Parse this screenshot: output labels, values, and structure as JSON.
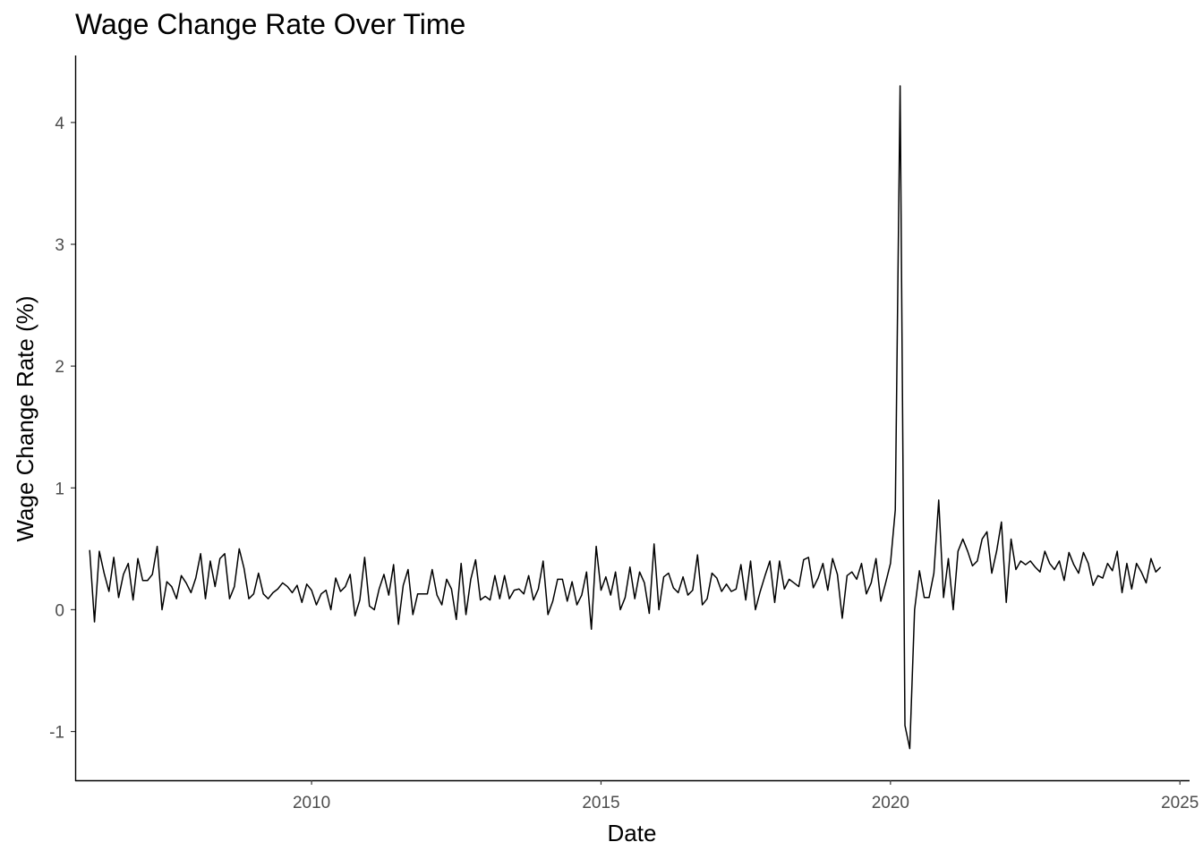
{
  "chart_data": {
    "type": "line",
    "title": "Wage Change Rate Over Time",
    "xlabel": "Date",
    "ylabel": "Wage Change Rate (%)",
    "x_ticks": [
      "2010",
      "2015",
      "2020",
      "2025"
    ],
    "y_ticks": [
      "-1",
      "0",
      "1",
      "2",
      "3",
      "4"
    ],
    "xlim": [
      "2005-12",
      "2025-03"
    ],
    "ylim": [
      -1.4,
      4.55
    ],
    "grid": false,
    "line_color": "#000000",
    "series": [
      {
        "start": "2006-03",
        "frequency": "monthly",
        "values": [
          0.49,
          -0.1,
          0.48,
          0.3,
          0.15,
          0.43,
          0.1,
          0.29,
          0.38,
          0.08,
          0.42,
          0.24,
          0.24,
          0.29,
          0.52,
          0.0,
          0.23,
          0.19,
          0.09,
          0.28,
          0.22,
          0.14,
          0.26,
          0.46,
          0.09,
          0.4,
          0.19,
          0.42,
          0.46,
          0.09,
          0.19,
          0.5,
          0.34,
          0.09,
          0.13,
          0.3,
          0.13,
          0.09,
          0.14,
          0.17,
          0.22,
          0.19,
          0.14,
          0.2,
          0.06,
          0.21,
          0.16,
          0.04,
          0.13,
          0.16,
          0.0,
          0.26,
          0.15,
          0.19,
          0.29,
          -0.05,
          0.08,
          0.43,
          0.03,
          0.0,
          0.17,
          0.29,
          0.12,
          0.37,
          -0.12,
          0.2,
          0.33,
          -0.04,
          0.13,
          0.13,
          0.13,
          0.33,
          0.12,
          0.04,
          0.25,
          0.17,
          -0.08,
          0.38,
          -0.04,
          0.25,
          0.41,
          0.08,
          0.11,
          0.08,
          0.28,
          0.09,
          0.28,
          0.09,
          0.16,
          0.17,
          0.13,
          0.28,
          0.08,
          0.17,
          0.4,
          -0.04,
          0.07,
          0.25,
          0.25,
          0.07,
          0.23,
          0.04,
          0.12,
          0.31,
          -0.16,
          0.52,
          0.16,
          0.27,
          0.12,
          0.31,
          0.0,
          0.1,
          0.35,
          0.09,
          0.31,
          0.22,
          -0.03,
          0.54,
          0.0,
          0.27,
          0.3,
          0.18,
          0.14,
          0.27,
          0.12,
          0.16,
          0.45,
          0.04,
          0.09,
          0.3,
          0.26,
          0.15,
          0.21,
          0.15,
          0.17,
          0.37,
          0.08,
          0.4,
          0.0,
          0.15,
          0.28,
          0.4,
          0.06,
          0.4,
          0.17,
          0.25,
          0.22,
          0.19,
          0.41,
          0.43,
          0.18,
          0.26,
          0.38,
          0.16,
          0.42,
          0.29,
          -0.07,
          0.28,
          0.31,
          0.25,
          0.38,
          0.13,
          0.22,
          0.42,
          0.07,
          0.22,
          0.38,
          0.82,
          4.3,
          -0.95,
          -1.14,
          0.0,
          0.32,
          0.1,
          0.1,
          0.3,
          0.9,
          0.1,
          0.42,
          0.0,
          0.48,
          0.58,
          0.48,
          0.36,
          0.4,
          0.58,
          0.64,
          0.3,
          0.48,
          0.72,
          0.06,
          0.58,
          0.33,
          0.4,
          0.37,
          0.4,
          0.35,
          0.31,
          0.48,
          0.38,
          0.33,
          0.4,
          0.24,
          0.47,
          0.37,
          0.3,
          0.47,
          0.38,
          0.2,
          0.28,
          0.26,
          0.38,
          0.32,
          0.48,
          0.14,
          0.38,
          0.17,
          0.38,
          0.31,
          0.22,
          0.42,
          0.31,
          0.35
        ]
      }
    ]
  }
}
